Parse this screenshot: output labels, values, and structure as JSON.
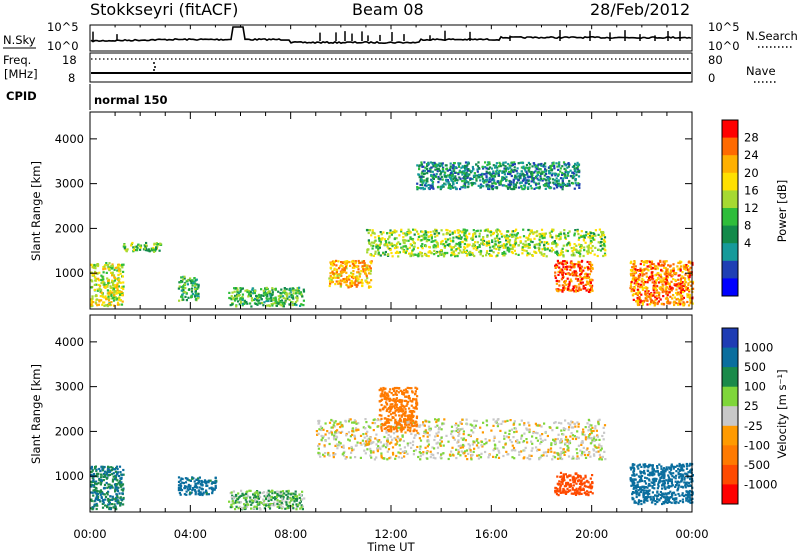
{
  "header": {
    "title": "Stokkseyri (fitACF)",
    "beam": "Beam 08",
    "date": "28/Feb/2012"
  },
  "panels": {
    "nsky": {
      "label": "N.Sky",
      "ticks": [
        "10^5",
        "10^0"
      ],
      "right_label": "N.Search",
      "right_ticks": [
        "10^5",
        "10^0"
      ]
    },
    "freq": {
      "label_top": "Freq.",
      "label_unit": "[MHz]",
      "ticks": [
        "18",
        "8"
      ],
      "right_label": "Nave",
      "right_ticks": [
        "80",
        "0"
      ]
    },
    "cpid": {
      "label": "CPID",
      "value": "normal 150"
    }
  },
  "colorbars": {
    "power": {
      "title": "Power [dB]",
      "labels": [
        "28",
        "24",
        "20",
        "16",
        "12",
        "8",
        "4"
      ],
      "colors": [
        "#ff0000",
        "#ff6a00",
        "#ffb000",
        "#ffe000",
        "#a6d932",
        "#2ebd3a",
        "#128a4a",
        "#169a9a",
        "#1e3fb4",
        "#0000ff"
      ]
    },
    "velocity": {
      "title": "Velocity [m s⁻¹]",
      "labels": [
        "1000",
        "500",
        "100",
        "25",
        "-25",
        "-100",
        "-500",
        "-1000"
      ],
      "colors": [
        "#1e3cb4",
        "#0a6e9e",
        "#1b8a4a",
        "#7fd63a",
        "#c8c8c8",
        "#ff9a00",
        "#ff7a00",
        "#ff4a00",
        "#ff0000"
      ]
    }
  },
  "chart_data": [
    {
      "type": "heatmap",
      "name": "power",
      "ylabel": "Slant Range [km]",
      "ylim": [
        200,
        4600
      ],
      "yticks": [
        "4000",
        "3000",
        "2000",
        "1000"
      ],
      "xlim": [
        0,
        24
      ],
      "colorbar": "Power [dB]",
      "features": [
        {
          "t": [
            0.0,
            1.3
          ],
          "r": [
            280,
            1250
          ],
          "value": 18
        },
        {
          "t": [
            1.3,
            2.8
          ],
          "r": [
            1500,
            1700
          ],
          "value": 14
        },
        {
          "t": [
            3.5,
            4.3
          ],
          "r": [
            400,
            950
          ],
          "value": 12
        },
        {
          "t": [
            5.5,
            8.5
          ],
          "r": [
            280,
            700
          ],
          "value": 13
        },
        {
          "t": [
            9.5,
            11.2
          ],
          "r": [
            700,
            1300
          ],
          "value": 22
        },
        {
          "t": [
            11.0,
            20.5
          ],
          "r": [
            1400,
            2000
          ],
          "value": 16
        },
        {
          "t": [
            13.0,
            19.5
          ],
          "r": [
            2900,
            3500
          ],
          "value": 9
        },
        {
          "t": [
            18.5,
            20.0
          ],
          "r": [
            600,
            1300
          ],
          "value": 26
        },
        {
          "t": [
            21.5,
            24.0
          ],
          "r": [
            300,
            1300
          ],
          "value": 24
        }
      ]
    },
    {
      "type": "heatmap",
      "name": "velocity",
      "ylabel": "Slant Range [km]",
      "xlabel": "Time UT",
      "ylim": [
        200,
        4600
      ],
      "yticks": [
        "4000",
        "3000",
        "2000",
        "1000"
      ],
      "xticks": [
        "00:00",
        "04:00",
        "08:00",
        "12:00",
        "16:00",
        "20:00",
        "00:00"
      ],
      "xlim": [
        0,
        24
      ],
      "colorbar": "Velocity [m s⁻¹]",
      "features": [
        {
          "t": [
            0.0,
            1.3
          ],
          "r": [
            280,
            1250
          ],
          "value": 300
        },
        {
          "t": [
            3.5,
            5.0
          ],
          "r": [
            600,
            1000
          ],
          "value": 350
        },
        {
          "t": [
            5.5,
            8.5
          ],
          "r": [
            280,
            700
          ],
          "value": 60
        },
        {
          "t": [
            9.0,
            20.5
          ],
          "r": [
            1400,
            2300
          ],
          "value": 0
        },
        {
          "t": [
            11.5,
            13.0
          ],
          "r": [
            2000,
            3000
          ],
          "value": -200
        },
        {
          "t": [
            18.5,
            20.0
          ],
          "r": [
            600,
            1100
          ],
          "value": -400
        },
        {
          "t": [
            21.5,
            24.0
          ],
          "r": [
            400,
            1300
          ],
          "value": 600
        }
      ]
    }
  ]
}
